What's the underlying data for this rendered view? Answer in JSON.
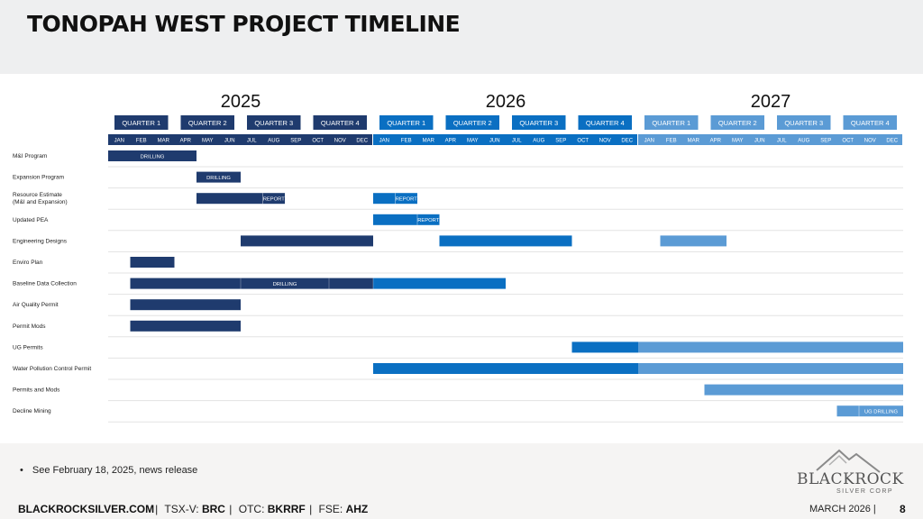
{
  "slide": {
    "title": "TONOPAH WEST PROJECT TIMELINE",
    "note": "See February 18, 2025, news release",
    "footer": {
      "website": "BLACKROCKSILVER.COM",
      "tsx_label": "TSX-V:",
      "tsx_value": "BRC",
      "otc_label": "OTC:",
      "otc_value": "BKRRF",
      "fse_label": "FSE:",
      "fse_value": "AHZ",
      "date": "MARCH 2026",
      "page": "8"
    },
    "logo": {
      "name": "BLACKROCK",
      "sub": "SILVER CORP"
    }
  },
  "colors": {
    "y2025": "#1f3b6e",
    "y2026": "#0a6fc2",
    "y2027": "#5b9bd5"
  },
  "chart_data": {
    "type": "gantt",
    "years": [
      "2025",
      "2026",
      "2027"
    ],
    "quarters": [
      "QUARTER 1",
      "QUARTER 2",
      "QUARTER 3",
      "QUARTER 4"
    ],
    "months": [
      "JAN",
      "FEB",
      "MAR",
      "APR",
      "MAY",
      "JUN",
      "JUL",
      "AUG",
      "SEP",
      "OCT",
      "NOV",
      "DEC"
    ],
    "tasks": [
      {
        "name": "M&I Program",
        "bars": [
          {
            "start": 0,
            "end": 4,
            "label": "DRILLING"
          }
        ]
      },
      {
        "name": "Expansion Program",
        "bars": [
          {
            "start": 4,
            "end": 6,
            "label": "DRILLING"
          }
        ]
      },
      {
        "name": "Resource Estimate\n(M&I and Expansion)",
        "bars": [
          {
            "start": 4,
            "end": 8,
            "label": "REPORT",
            "label_start": 7
          },
          {
            "start": 12,
            "end": 14,
            "label": "REPORT",
            "label_start": 13
          }
        ]
      },
      {
        "name": "Updated PEA",
        "bars": [
          {
            "start": 12,
            "end": 15,
            "label": "REPORT",
            "label_start": 14
          }
        ]
      },
      {
        "name": "Engineering Designs",
        "bars": [
          {
            "start": 6,
            "end": 12
          },
          {
            "start": 15,
            "end": 21
          },
          {
            "start": 25,
            "end": 28
          }
        ]
      },
      {
        "name": "Enviro Plan",
        "bars": [
          {
            "start": 1,
            "end": 3
          }
        ]
      },
      {
        "name": "Baseline Data Collection",
        "bars": [
          {
            "start": 1,
            "end": 18,
            "label": "DRILLING",
            "segments": [
              1,
              6,
              10,
              12,
              18
            ]
          }
        ]
      },
      {
        "name": "Air Quality Permit",
        "bars": [
          {
            "start": 1,
            "end": 6
          }
        ]
      },
      {
        "name": "Permit Mods",
        "bars": [
          {
            "start": 1,
            "end": 6
          }
        ]
      },
      {
        "name": "UG Permits",
        "bars": [
          {
            "start": 21,
            "end": 36
          }
        ]
      },
      {
        "name": "Water Pollution Control Permit",
        "bars": [
          {
            "start": 12,
            "end": 36
          }
        ]
      },
      {
        "name": "Permits and Mods",
        "bars": [
          {
            "start": 27,
            "end": 36
          }
        ]
      },
      {
        "name": "Decline Mining",
        "bars": [
          {
            "start": 33,
            "end": 36,
            "label": "UG DRILLING",
            "label_start": 34
          }
        ]
      }
    ]
  }
}
